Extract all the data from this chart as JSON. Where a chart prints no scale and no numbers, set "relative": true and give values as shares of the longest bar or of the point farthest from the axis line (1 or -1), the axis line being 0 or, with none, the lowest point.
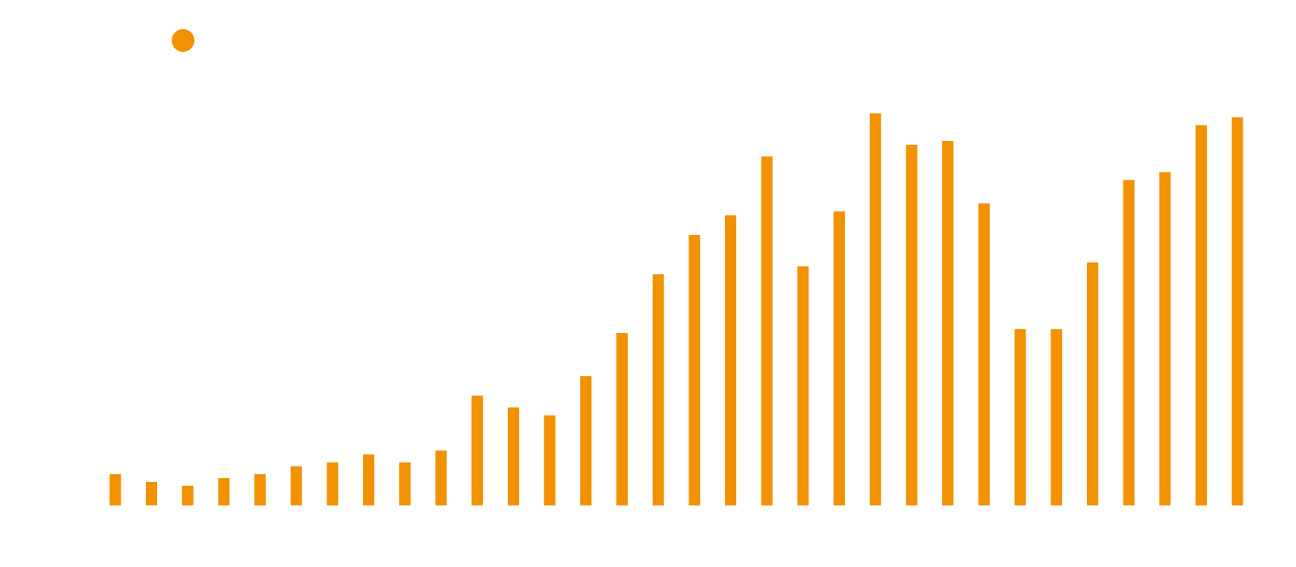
{
  "chart_data": {
    "type": "bar",
    "relative": true,
    "categories": [
      null,
      null,
      null,
      null,
      null,
      null,
      null,
      null,
      null,
      null,
      null,
      null,
      null,
      null,
      null,
      null,
      null,
      null,
      null,
      null,
      null,
      null,
      null,
      null,
      null,
      null,
      null,
      null,
      null,
      null,
      null,
      null
    ],
    "series": [
      {
        "color": "#f39200",
        "values": [
          0.08,
          0.06,
          0.05,
          0.07,
          0.08,
          0.1,
          0.11,
          0.13,
          0.11,
          0.14,
          0.28,
          0.25,
          0.23,
          0.33,
          0.44,
          0.59,
          0.69,
          0.74,
          0.89,
          0.61,
          0.75,
          1,
          0.92,
          0.93,
          0.77,
          0.45,
          0.45,
          0.62,
          0.83,
          0.85,
          0.97,
          0.99
        ]
      }
    ]
  }
}
